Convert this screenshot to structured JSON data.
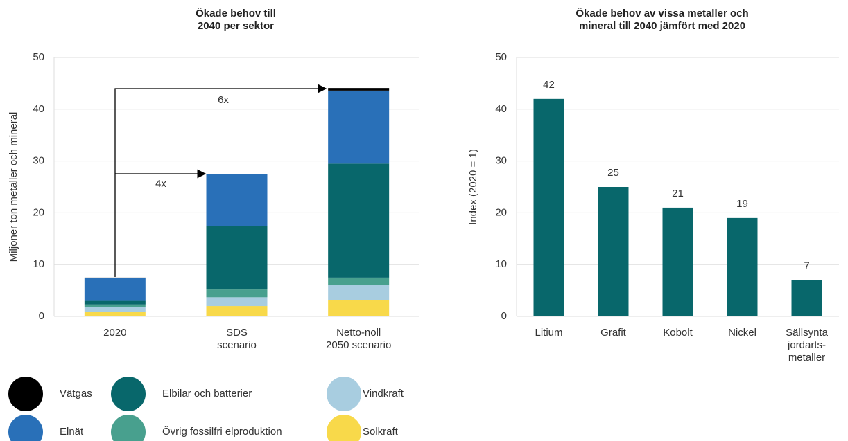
{
  "chart_data": [
    {
      "type": "stacked_bar",
      "title": "Ökade behov till\n2040 per sektor",
      "y_label": "Miljoner ton metaller och mineral",
      "categories": [
        "2020",
        "SDS\nscenario",
        "Netto-noll\n2050 scenario"
      ],
      "series": [
        {
          "name": "Vätgas",
          "color": "#000000",
          "values": [
            0.1,
            0,
            0.5
          ]
        },
        {
          "name": "Elnät",
          "color": "#2970b8",
          "values": [
            4.4,
            10.1,
            14.1
          ]
        },
        {
          "name": "Elbilar och batterier",
          "color": "#08676b",
          "values": [
            0.7,
            12.2,
            22.0
          ]
        },
        {
          "name": "Övrig fossilfri elproduktion",
          "color": "#48a08e",
          "values": [
            0.5,
            1.5,
            1.4
          ]
        },
        {
          "name": "Vindkraft",
          "color": "#a8cde0",
          "values": [
            0.9,
            1.7,
            2.9
          ]
        },
        {
          "name": "Solkraft",
          "color": "#f8d94a",
          "values": [
            0.9,
            2.0,
            3.2
          ]
        }
      ],
      "annotations": [
        "4x",
        "6x"
      ],
      "ylim": [
        0,
        50
      ],
      "yticks": [
        0,
        10,
        20,
        30,
        40,
        50
      ],
      "grid": true
    },
    {
      "type": "bar",
      "title": "Ökade behov av vissa metaller och\nmineral till 2040 jämfört med 2020",
      "y_label": "Index (2020 = 1)",
      "categories": [
        "Litium",
        "Grafit",
        "Kobolt",
        "Nickel",
        "Sällsynta\njordarts-\nmetaller"
      ],
      "values": [
        42,
        25,
        21,
        19,
        7
      ],
      "color": "#08676b",
      "ylim": [
        0,
        50
      ],
      "yticks": [
        0,
        10,
        20,
        30,
        40,
        50
      ],
      "grid": true
    }
  ]
}
